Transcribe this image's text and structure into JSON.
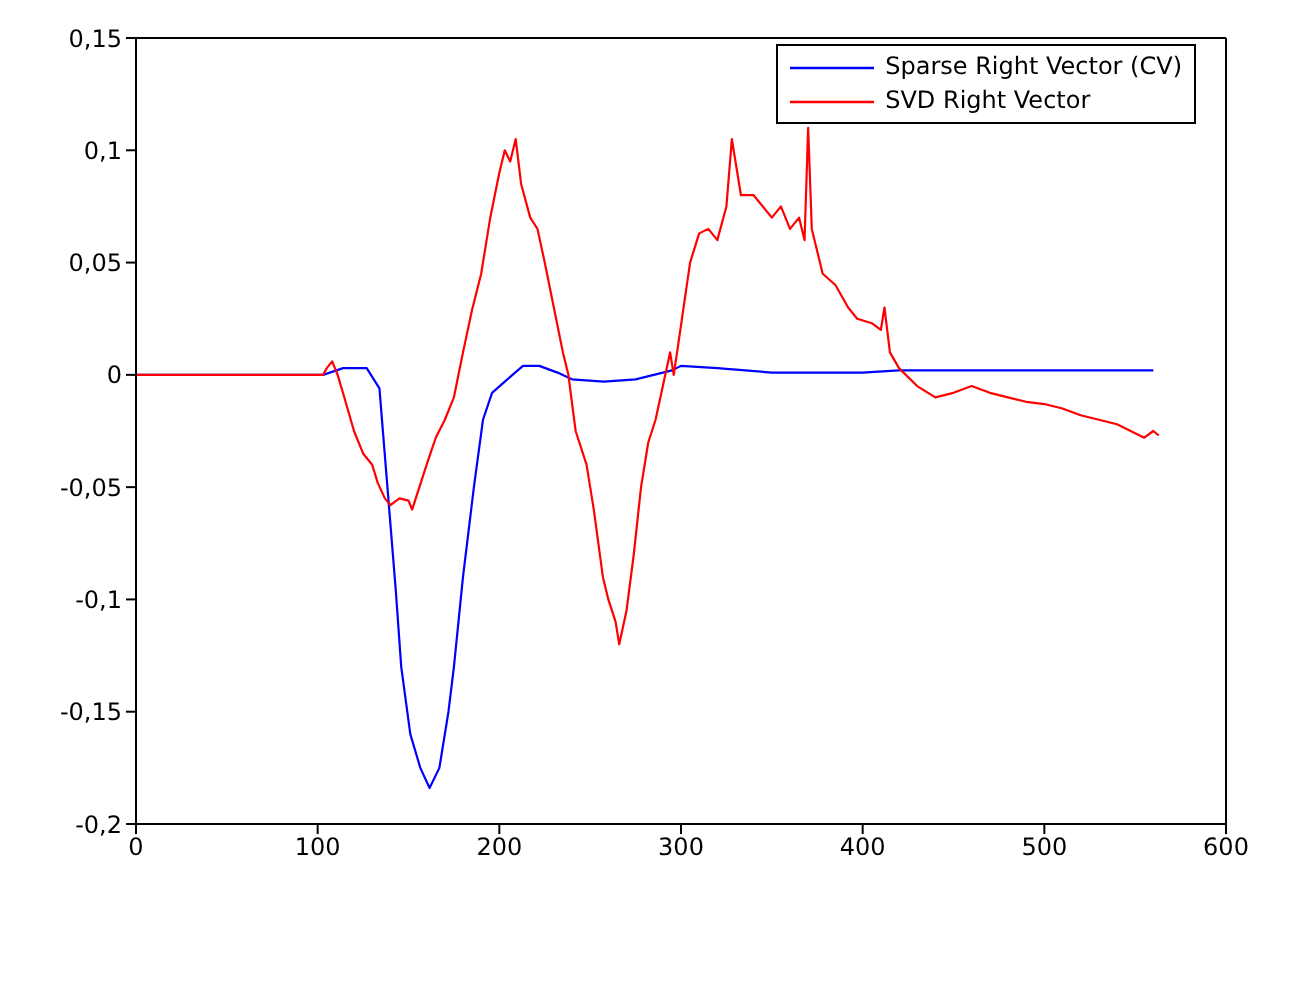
{
  "chart_data": {
    "type": "line",
    "xlim": [
      0,
      600
    ],
    "xticks": [
      0,
      100,
      200,
      300,
      400,
      500,
      600
    ],
    "ylim": [
      -0.2,
      0.15
    ],
    "yticks": [
      {
        "value": -0.2,
        "label": "-0,2"
      },
      {
        "value": -0.15,
        "label": "-0,15"
      },
      {
        "value": -0.1,
        "label": "-0,1"
      },
      {
        "value": -0.05,
        "label": "-0,05"
      },
      0,
      {
        "value": 0.05,
        "label": "0,05"
      },
      {
        "value": 0.1,
        "label": "0,1"
      },
      {
        "value": 0.15,
        "label": "0,15"
      }
    ],
    "legend": "top right",
    "line_style": "solid",
    "marker": "none",
    "series": [
      {
        "name": "Sparse Right Vector (CV)",
        "color": "#0000ff",
        "x": [
          0,
          103,
          114,
          127,
          134,
          138,
          143,
          146,
          151,
          156.5,
          161.6,
          167,
          172,
          175,
          180,
          186,
          191,
          196,
          203,
          213,
          222,
          232,
          240,
          257.5,
          275,
          295,
          300,
          320,
          350,
          400,
          420,
          450,
          500,
          560
        ],
        "values": [
          0,
          0,
          0.003,
          0.003,
          -0.006,
          -0.046,
          -0.096,
          -0.13,
          -0.16,
          -0.175,
          -0.184,
          -0.175,
          -0.15,
          -0.13,
          -0.09,
          -0.05,
          -0.02,
          -0.008,
          -0.003,
          0.004,
          0.004,
          0.001,
          -0.002,
          -0.003,
          -0.002,
          0.002,
          0.004,
          0.003,
          0.001,
          0.001,
          0.002,
          0.002,
          0.002,
          0.002
        ]
      },
      {
        "name": "SVD Right Vector",
        "color": "#ff0000",
        "x": [
          0,
          103,
          105,
          108,
          111,
          115,
          120,
          125,
          130,
          133,
          137,
          140,
          145,
          150,
          152,
          156,
          160,
          165,
          170,
          175,
          180,
          185,
          190,
          195,
          200,
          203,
          206,
          209,
          212,
          217,
          221,
          225,
          230,
          235,
          238,
          242,
          248,
          252,
          257,
          260,
          264,
          266,
          270,
          274,
          278,
          282,
          286,
          290,
          294,
          296,
          300,
          305,
          310,
          315,
          320,
          325,
          328,
          333,
          340,
          350,
          355,
          360,
          365,
          368,
          370,
          372,
          378,
          385,
          392,
          397,
          405,
          410,
          412,
          415,
          420,
          430,
          440,
          450,
          460,
          470,
          480,
          490,
          500,
          510,
          520,
          530,
          540,
          550,
          555,
          560,
          563
        ],
        "values": [
          0,
          0,
          0.003,
          0.006,
          0,
          -0.011,
          -0.025,
          -0.035,
          -0.04,
          -0.048,
          -0.055,
          -0.058,
          -0.055,
          -0.056,
          -0.06,
          -0.05,
          -0.04,
          -0.028,
          -0.02,
          -0.01,
          0.01,
          0.029,
          0.045,
          0.07,
          0.09,
          0.1,
          0.095,
          0.105,
          0.085,
          0.07,
          0.065,
          0.05,
          0.03,
          0.01,
          0,
          -0.025,
          -0.04,
          -0.06,
          -0.09,
          -0.1,
          -0.11,
          -0.12,
          -0.105,
          -0.08,
          -0.05,
          -0.03,
          -0.02,
          -0.005,
          0.01,
          0,
          0.022,
          0.05,
          0.063,
          0.065,
          0.06,
          0.075,
          0.105,
          0.08,
          0.08,
          0.07,
          0.075,
          0.065,
          0.07,
          0.06,
          0.11,
          0.065,
          0.045,
          0.04,
          0.03,
          0.025,
          0.023,
          0.02,
          0.03,
          0.01,
          0.003,
          -0.005,
          -0.01,
          -0.008,
          -0.005,
          -0.008,
          -0.01,
          -0.012,
          -0.013,
          -0.015,
          -0.018,
          -0.02,
          -0.022,
          -0.026,
          -0.028,
          -0.025,
          -0.027
        ]
      }
    ]
  }
}
